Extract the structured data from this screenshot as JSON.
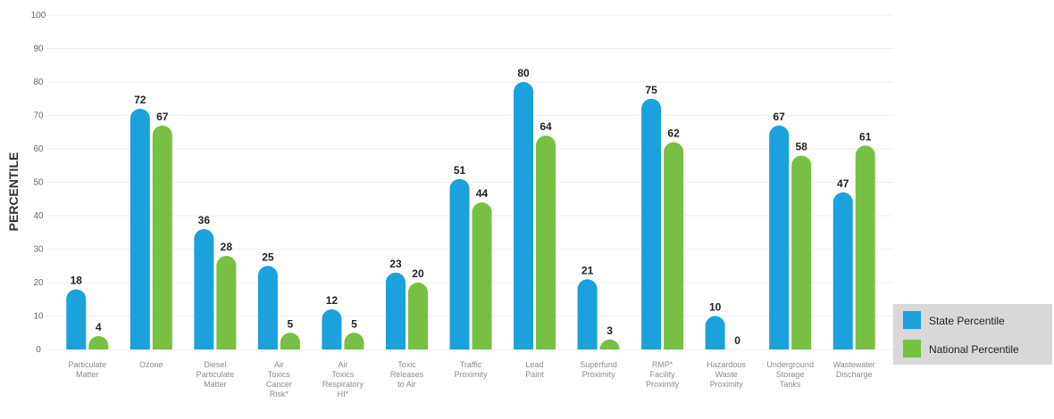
{
  "chart_data": {
    "type": "bar",
    "ylabel": "PERCENTILE",
    "ylim": [
      0,
      100
    ],
    "yticks": [
      0,
      10,
      20,
      30,
      40,
      50,
      60,
      70,
      80,
      90,
      100
    ],
    "grid": true,
    "legend_position": "bottom-right",
    "categories": [
      [
        "Particulate",
        "Matter"
      ],
      [
        "Ozone"
      ],
      [
        "Diesel",
        "Particulate",
        "Matter"
      ],
      [
        "Air",
        "Toxics",
        "Cancer",
        "Risk*"
      ],
      [
        "Air",
        "Toxics",
        "Respiratory",
        "HI*"
      ],
      [
        "Toxic",
        "Releases",
        "to Air"
      ],
      [
        "Traffic",
        "Proximity"
      ],
      [
        "Lead",
        "Paint"
      ],
      [
        "Superfund",
        "Proximity"
      ],
      [
        "RMP*",
        "Facility",
        "Proximity"
      ],
      [
        "Hazardous",
        "Waste",
        "Proximity"
      ],
      [
        "Underground",
        "Storage",
        "Tanks"
      ],
      [
        "Wastewater",
        "Discharge"
      ]
    ],
    "series": [
      {
        "name": "State Percentile",
        "color": "#1ba1dc",
        "values": [
          18,
          72,
          36,
          25,
          12,
          23,
          51,
          80,
          21,
          75,
          10,
          67,
          47
        ]
      },
      {
        "name": "National Percentile",
        "color": "#78c043",
        "values": [
          4,
          67,
          28,
          5,
          5,
          20,
          44,
          64,
          3,
          62,
          0,
          58,
          61
        ]
      }
    ]
  }
}
